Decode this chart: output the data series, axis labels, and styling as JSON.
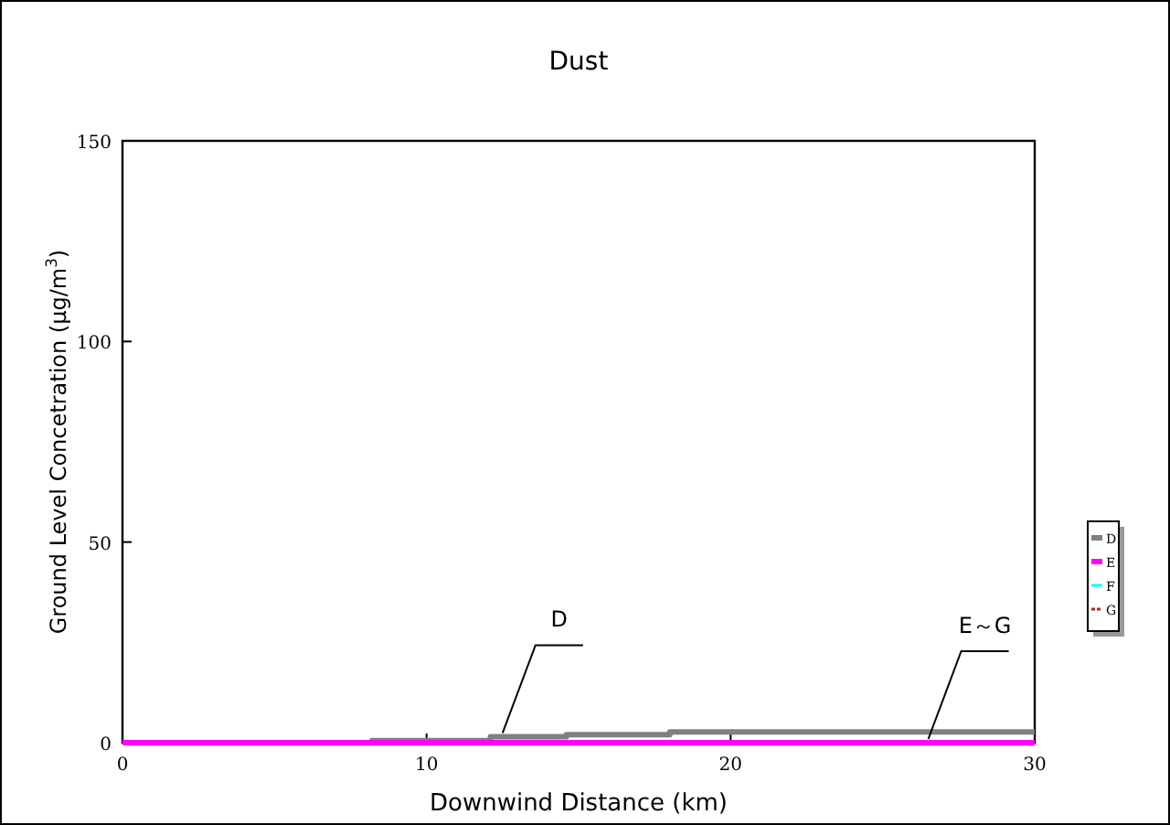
{
  "chart_data": {
    "type": "step",
    "title": "Dust",
    "xlabel": "Downwind Distance (km)",
    "ylabel": "Ground Level Concetration (μg/m$^{3}$)",
    "xlim": [
      0,
      30
    ],
    "xticks": [
      0,
      10,
      20,
      30
    ],
    "ylim": [
      0,
      150
    ],
    "yticks": [
      0,
      50,
      100,
      150
    ],
    "grid": false,
    "legend": "right",
    "series": [
      {
        "name": "D",
        "color": "#808080",
        "x": [
          0,
          8.2,
          12.1,
          14.6,
          18,
          30
        ],
        "values": [
          0,
          0.5,
          1.5,
          2,
          2.7,
          2.7
        ]
      },
      {
        "name": "E",
        "color": "#ff00ff",
        "x": [
          0,
          30
        ],
        "values": [
          0,
          0
        ]
      },
      {
        "name": "F",
        "color": "#00ffff"
      },
      {
        "name": "G",
        "color": "#b22222",
        "line_style": "dashed"
      }
    ],
    "annotations": [
      {
        "text": "D",
        "x": 12.5,
        "y": 1.5
      },
      {
        "text": "E～G",
        "x": 26.5,
        "y": 0
      }
    ]
  }
}
